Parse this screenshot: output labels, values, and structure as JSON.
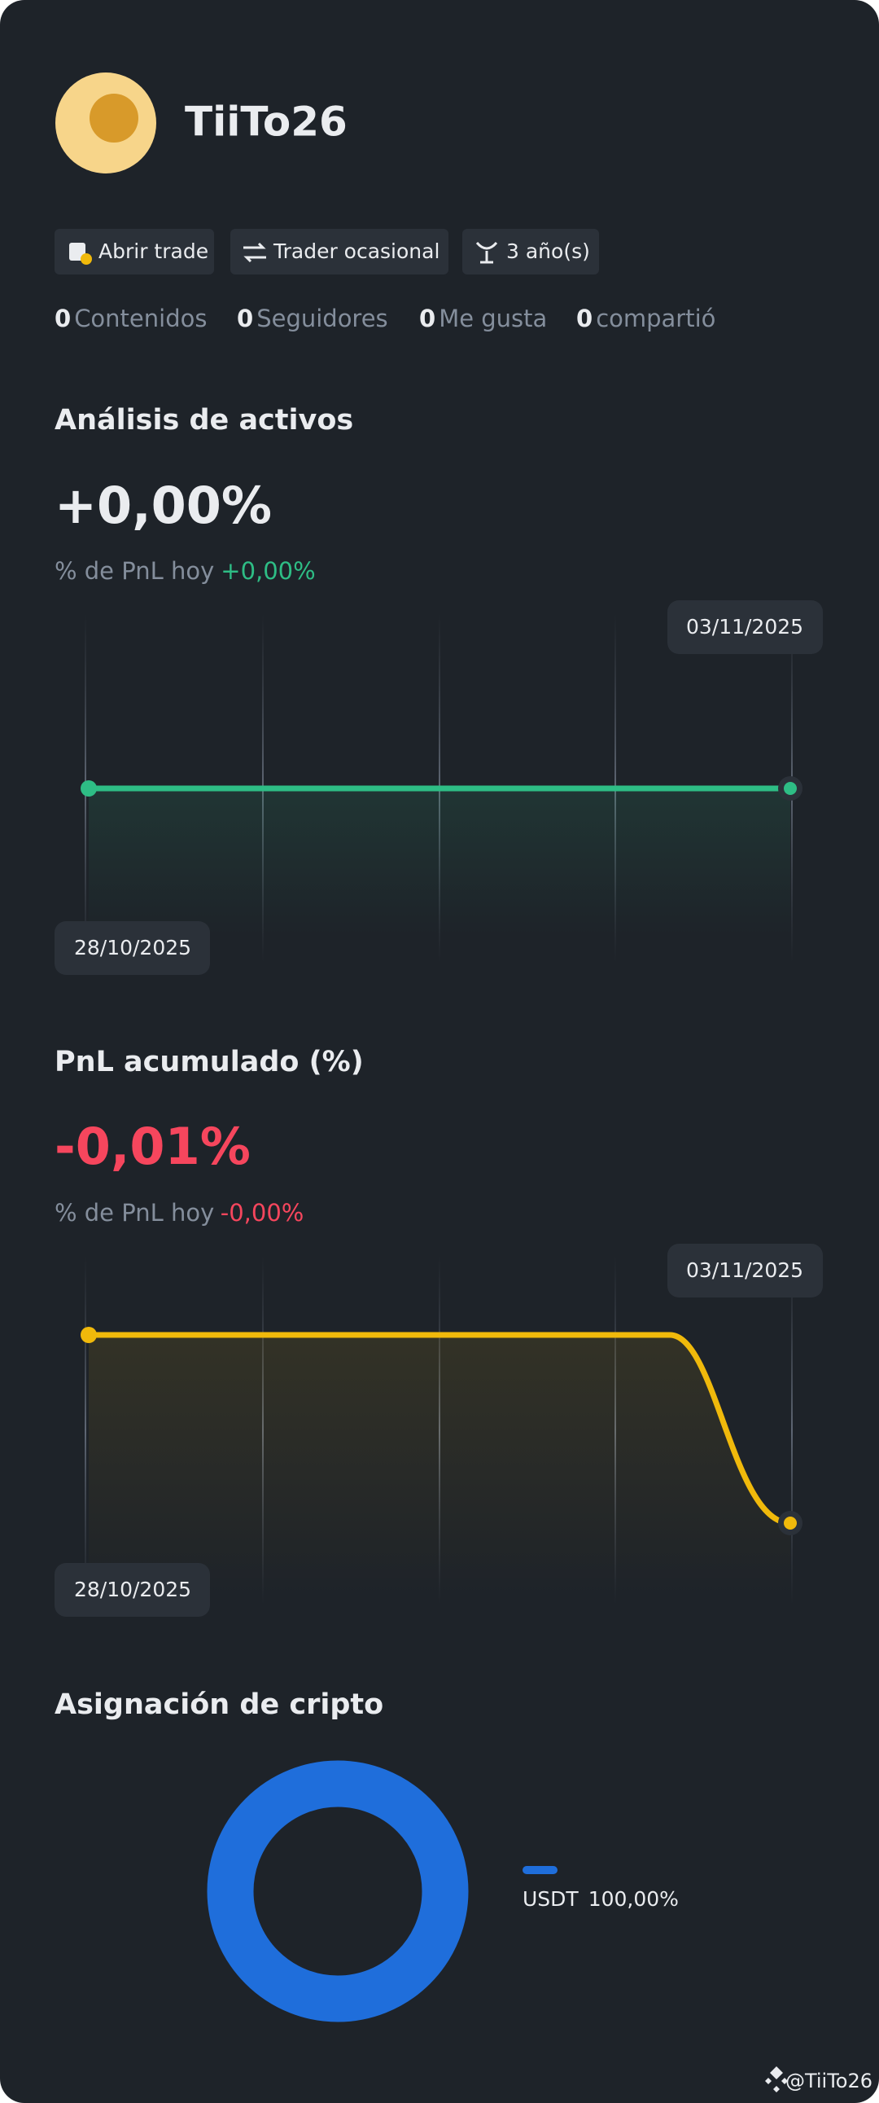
{
  "profile": {
    "name": "TiiTo26",
    "badges": [
      "Abrir trade",
      "Trader ocasional",
      "3 año(s)"
    ],
    "stats": [
      {
        "value": 0,
        "label": "Contenidos"
      },
      {
        "value": 0,
        "label": "Seguidores"
      },
      {
        "value": 0,
        "label": "Me gusta"
      },
      {
        "value": 0,
        "label": "compartió"
      }
    ]
  },
  "asset_analysis": {
    "title": "Análisis de activos",
    "value": "+0,00%",
    "sub_label": "% de PnL hoy",
    "sub_value": "+0,00%",
    "start_date": "28/10/2025",
    "end_date": "03/11/2025"
  },
  "pnl": {
    "title": "PnL acumulado (%)",
    "value": "-0,01%",
    "sub_label": "% de PnL hoy",
    "sub_value": "-0,00%",
    "start_date": "28/10/2025",
    "end_date": "03/11/2025"
  },
  "allocation": {
    "title": "Asignación de cripto",
    "asset": "USDT",
    "share": "100,00%"
  },
  "watermark": "@TiiTo26"
}
